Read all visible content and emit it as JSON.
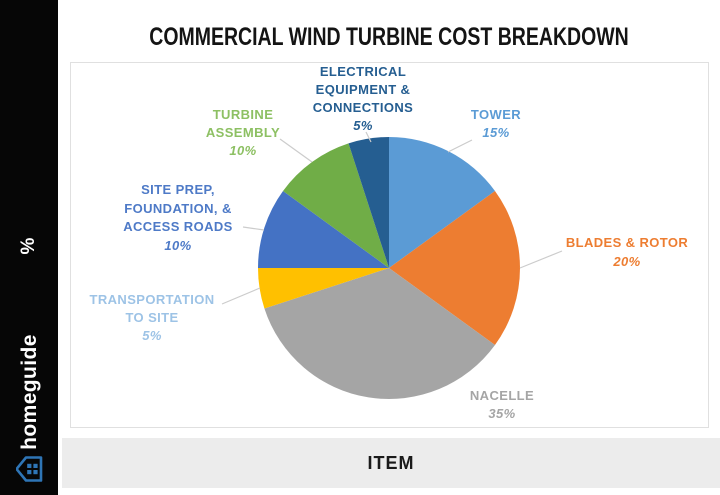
{
  "title": "COMMERCIAL WIND TURBINE COST BREAKDOWN",
  "sidebar": {
    "axis_label": "%",
    "brand": "homeguide",
    "accent": "#2E75B6"
  },
  "bottom_bar": {
    "label": "ITEM"
  },
  "chart_data": {
    "type": "pie",
    "title": "COMMERCIAL WIND TURBINE COST BREAKDOWN",
    "start_angle_deg": 0,
    "direction": "clockwise",
    "legend": "none",
    "slices": [
      {
        "name": "TOWER",
        "value": 15,
        "pct": "15%",
        "color": "#5B9BD5",
        "label_color": "#5B9BD5",
        "label_lines": [
          "TOWER"
        ]
      },
      {
        "name": "BLADES & ROTOR",
        "value": 20,
        "pct": "20%",
        "color": "#ED7D31",
        "label_color": "#ED7D31",
        "label_lines": [
          "BLADES & ROTOR"
        ]
      },
      {
        "name": "NACELLE",
        "value": 35,
        "pct": "35%",
        "color": "#A5A5A5",
        "label_color": "#A5A5A5",
        "label_lines": [
          "NACELLE"
        ]
      },
      {
        "name": "TRANSPORTATION TO SITE",
        "value": 5,
        "pct": "5%",
        "color": "#FFC000",
        "label_color": "#9DC3E6",
        "label_lines": [
          "TRANSPORTATION",
          "TO SITE"
        ]
      },
      {
        "name": "SITE PREP, FOUNDATION, & ACCESS ROADS",
        "value": 10,
        "pct": "10%",
        "color": "#4472C4",
        "label_color": "#4E7AC7",
        "label_lines": [
          "SITE PREP,",
          "FOUNDATION, &",
          "ACCESS ROADS"
        ]
      },
      {
        "name": "TURBINE ASSEMBLY",
        "value": 10,
        "pct": "10%",
        "color": "#70AD47",
        "label_color": "#8DC063",
        "label_lines": [
          "TURBINE",
          "ASSEMBLY"
        ]
      },
      {
        "name": "ELECTRICAL EQUIPMENT & CONNECTIONS",
        "value": 5,
        "pct": "5%",
        "color": "#255E91",
        "label_color": "#255E91",
        "label_lines": [
          "ELECTRICAL",
          "EQUIPMENT &",
          "CONNECTIONS"
        ]
      }
    ]
  }
}
